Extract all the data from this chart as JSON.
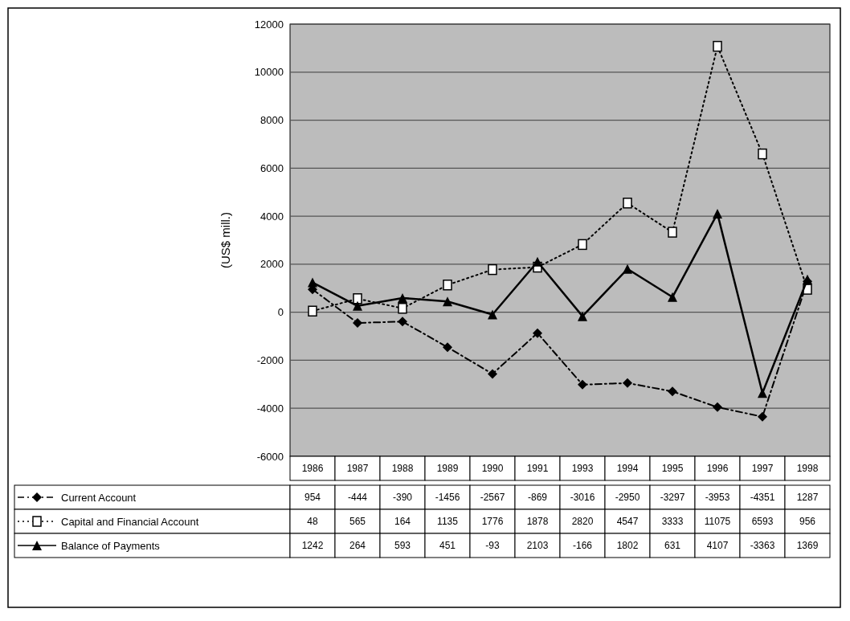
{
  "chart_data": {
    "type": "line",
    "ylabel": "(US$ mill.)",
    "categories": [
      "1986",
      "1987",
      "1988",
      "1989",
      "1990",
      "1991",
      "1993",
      "1994",
      "1995",
      "1996",
      "1997",
      "1998"
    ],
    "series": [
      {
        "name": "Current Account",
        "color": "#000000",
        "marker": "diamond",
        "line_style": "dashed",
        "values": [
          954,
          -444,
          -390,
          -1456,
          -2567,
          -869,
          -3016,
          -2950,
          -3297,
          -3953,
          -4351,
          1287
        ]
      },
      {
        "name": "Capital and Financial Account",
        "color": "#000000",
        "marker": "square",
        "line_style": "dotted",
        "values": [
          48,
          565,
          164,
          1135,
          1776,
          1878,
          2820,
          4547,
          3333,
          11075,
          6593,
          956
        ]
      },
      {
        "name": "Balance of Payments",
        "color": "#000000",
        "marker": "triangle",
        "line_style": "solid",
        "values": [
          1242,
          264,
          593,
          451,
          -93,
          2103,
          -166,
          1802,
          631,
          4107,
          -3363,
          1369
        ]
      }
    ],
    "ylim": [
      -6000,
      12000
    ],
    "yticks": [
      -6000,
      -4000,
      -2000,
      0,
      2000,
      4000,
      6000,
      8000,
      10000,
      12000
    ],
    "grid": "y",
    "legend": "bottom",
    "data_labels": true
  }
}
